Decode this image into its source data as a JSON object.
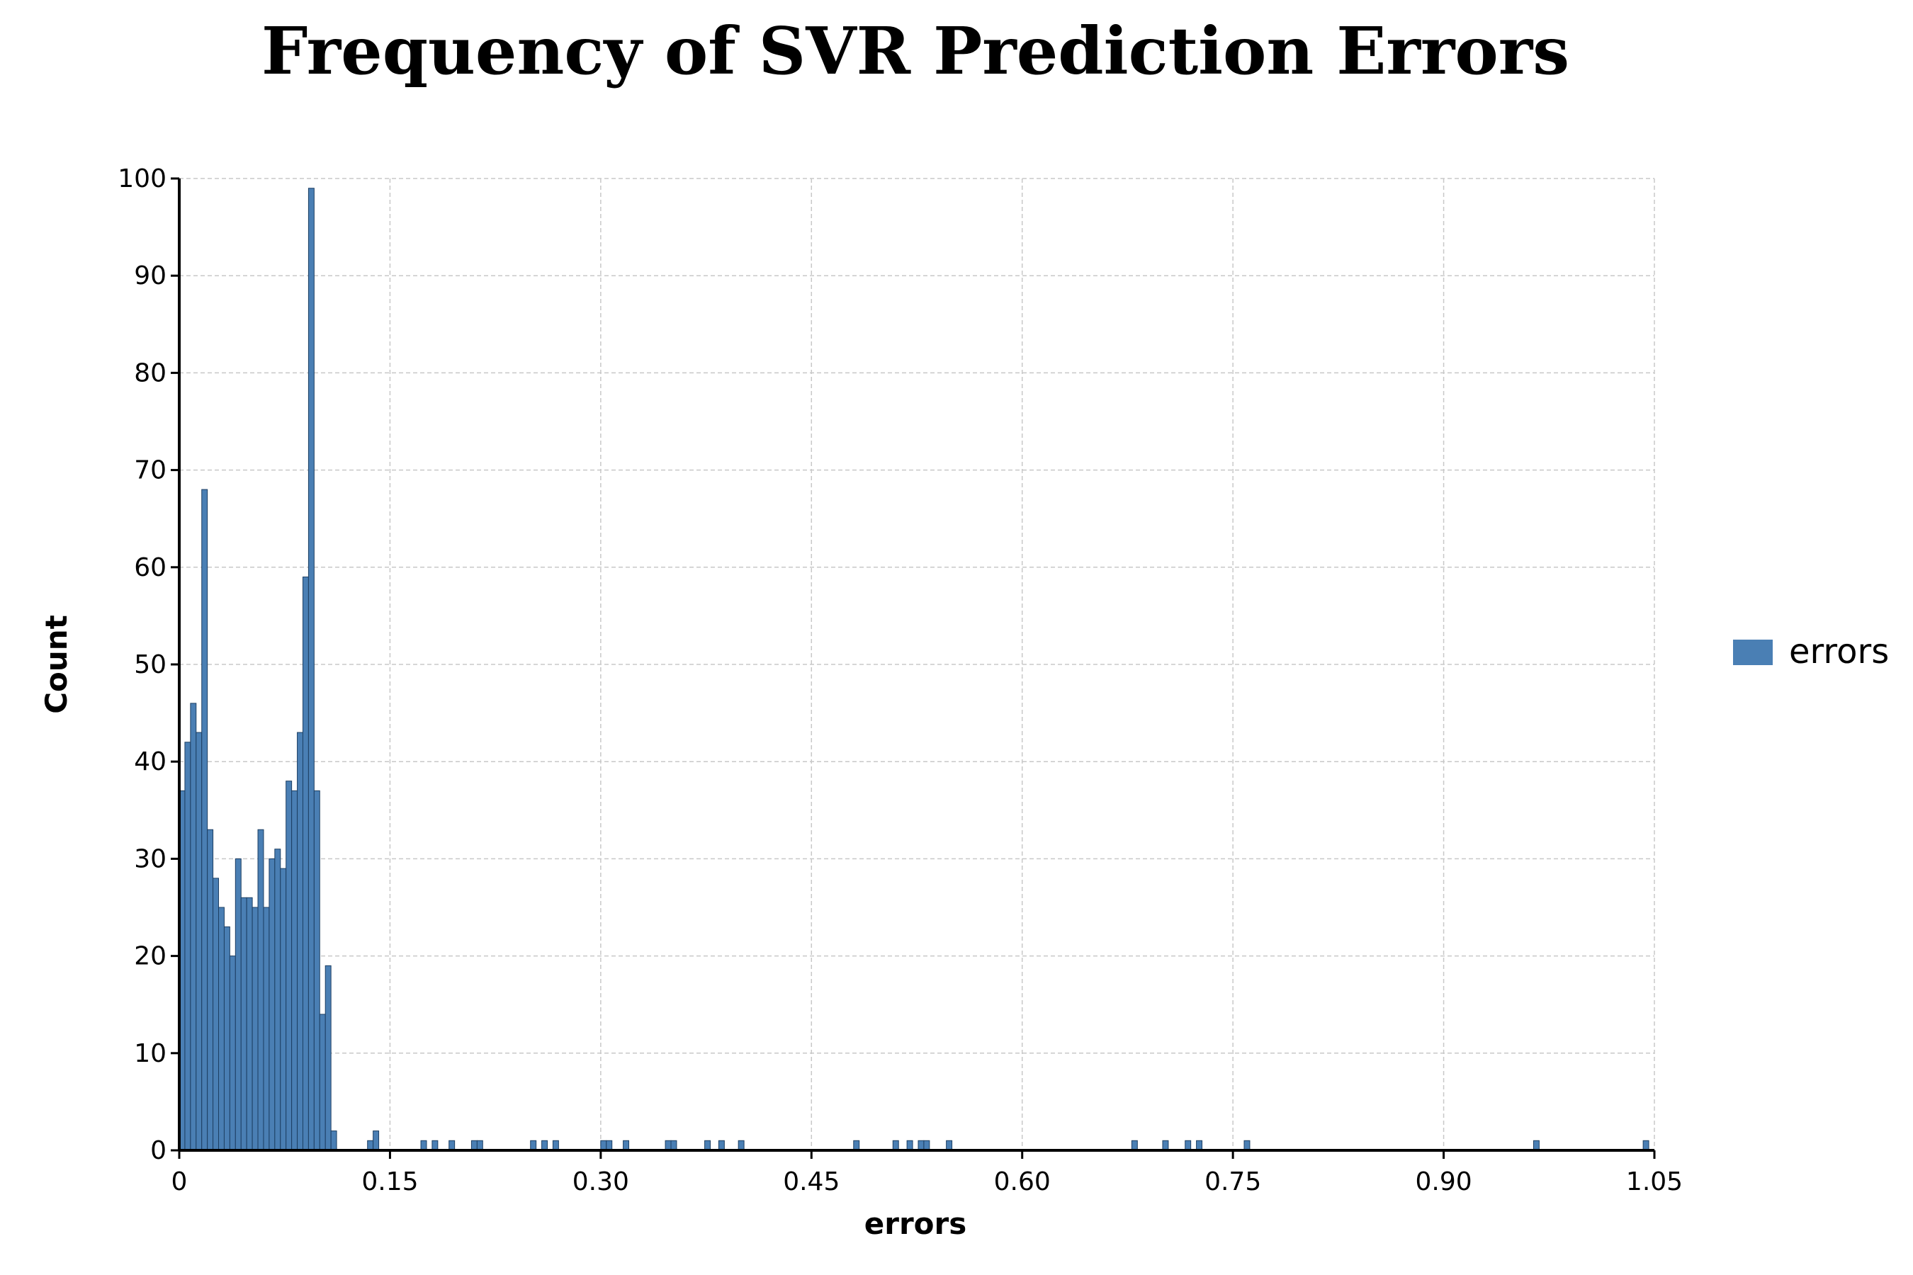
{
  "chart_data": {
    "type": "bar",
    "title": "Frequency of SVR Prediction Errors",
    "xlabel": "errors",
    "ylabel": "Count",
    "xlim": [
      0,
      1.05
    ],
    "ylim": [
      0,
      100
    ],
    "x_ticks": [
      0,
      0.15,
      0.3,
      0.45,
      0.6,
      0.75,
      0.9,
      1.05
    ],
    "x_tick_labels": [
      "0",
      "0.15",
      "0.30",
      "0.45",
      "0.60",
      "0.75",
      "0.90",
      "1.05"
    ],
    "y_ticks": [
      0,
      10,
      20,
      30,
      40,
      50,
      60,
      70,
      80,
      90,
      100
    ],
    "y_tick_labels": [
      "0",
      "10",
      "20",
      "30",
      "40",
      "50",
      "60",
      "70",
      "80",
      "90",
      "100"
    ],
    "grid": true,
    "legend_position": "right",
    "bin_width": 0.004,
    "series": [
      {
        "name": "errors",
        "color": "#4a7fb4",
        "bins": [
          {
            "x": 0.0,
            "count": 37
          },
          {
            "x": 0.004,
            "count": 42
          },
          {
            "x": 0.008,
            "count": 46
          },
          {
            "x": 0.012,
            "count": 43
          },
          {
            "x": 0.016,
            "count": 68
          },
          {
            "x": 0.02,
            "count": 33
          },
          {
            "x": 0.024,
            "count": 28
          },
          {
            "x": 0.028,
            "count": 25
          },
          {
            "x": 0.032,
            "count": 23
          },
          {
            "x": 0.036,
            "count": 20
          },
          {
            "x": 0.04,
            "count": 30
          },
          {
            "x": 0.044,
            "count": 26
          },
          {
            "x": 0.048,
            "count": 26
          },
          {
            "x": 0.052,
            "count": 25
          },
          {
            "x": 0.056,
            "count": 33
          },
          {
            "x": 0.06,
            "count": 25
          },
          {
            "x": 0.064,
            "count": 30
          },
          {
            "x": 0.068,
            "count": 31
          },
          {
            "x": 0.072,
            "count": 29
          },
          {
            "x": 0.076,
            "count": 38
          },
          {
            "x": 0.08,
            "count": 37
          },
          {
            "x": 0.084,
            "count": 43
          },
          {
            "x": 0.088,
            "count": 59
          },
          {
            "x": 0.092,
            "count": 99
          },
          {
            "x": 0.096,
            "count": 37
          },
          {
            "x": 0.1,
            "count": 14
          },
          {
            "x": 0.104,
            "count": 19
          },
          {
            "x": 0.108,
            "count": 2
          },
          {
            "x": 0.134,
            "count": 1
          },
          {
            "x": 0.138,
            "count": 2
          },
          {
            "x": 0.172,
            "count": 1
          },
          {
            "x": 0.18,
            "count": 1
          },
          {
            "x": 0.192,
            "count": 1
          },
          {
            "x": 0.208,
            "count": 1
          },
          {
            "x": 0.212,
            "count": 1
          },
          {
            "x": 0.25,
            "count": 1
          },
          {
            "x": 0.258,
            "count": 1
          },
          {
            "x": 0.266,
            "count": 1
          },
          {
            "x": 0.3,
            "count": 1
          },
          {
            "x": 0.304,
            "count": 1
          },
          {
            "x": 0.316,
            "count": 1
          },
          {
            "x": 0.346,
            "count": 1
          },
          {
            "x": 0.35,
            "count": 1
          },
          {
            "x": 0.374,
            "count": 1
          },
          {
            "x": 0.384,
            "count": 1
          },
          {
            "x": 0.398,
            "count": 1
          },
          {
            "x": 0.48,
            "count": 1
          },
          {
            "x": 0.508,
            "count": 1
          },
          {
            "x": 0.518,
            "count": 1
          },
          {
            "x": 0.526,
            "count": 1
          },
          {
            "x": 0.53,
            "count": 1
          },
          {
            "x": 0.546,
            "count": 1
          },
          {
            "x": 0.678,
            "count": 1
          },
          {
            "x": 0.7,
            "count": 1
          },
          {
            "x": 0.716,
            "count": 1
          },
          {
            "x": 0.724,
            "count": 1
          },
          {
            "x": 0.758,
            "count": 1
          },
          {
            "x": 0.964,
            "count": 1
          },
          {
            "x": 1.042,
            "count": 1
          }
        ]
      }
    ]
  }
}
